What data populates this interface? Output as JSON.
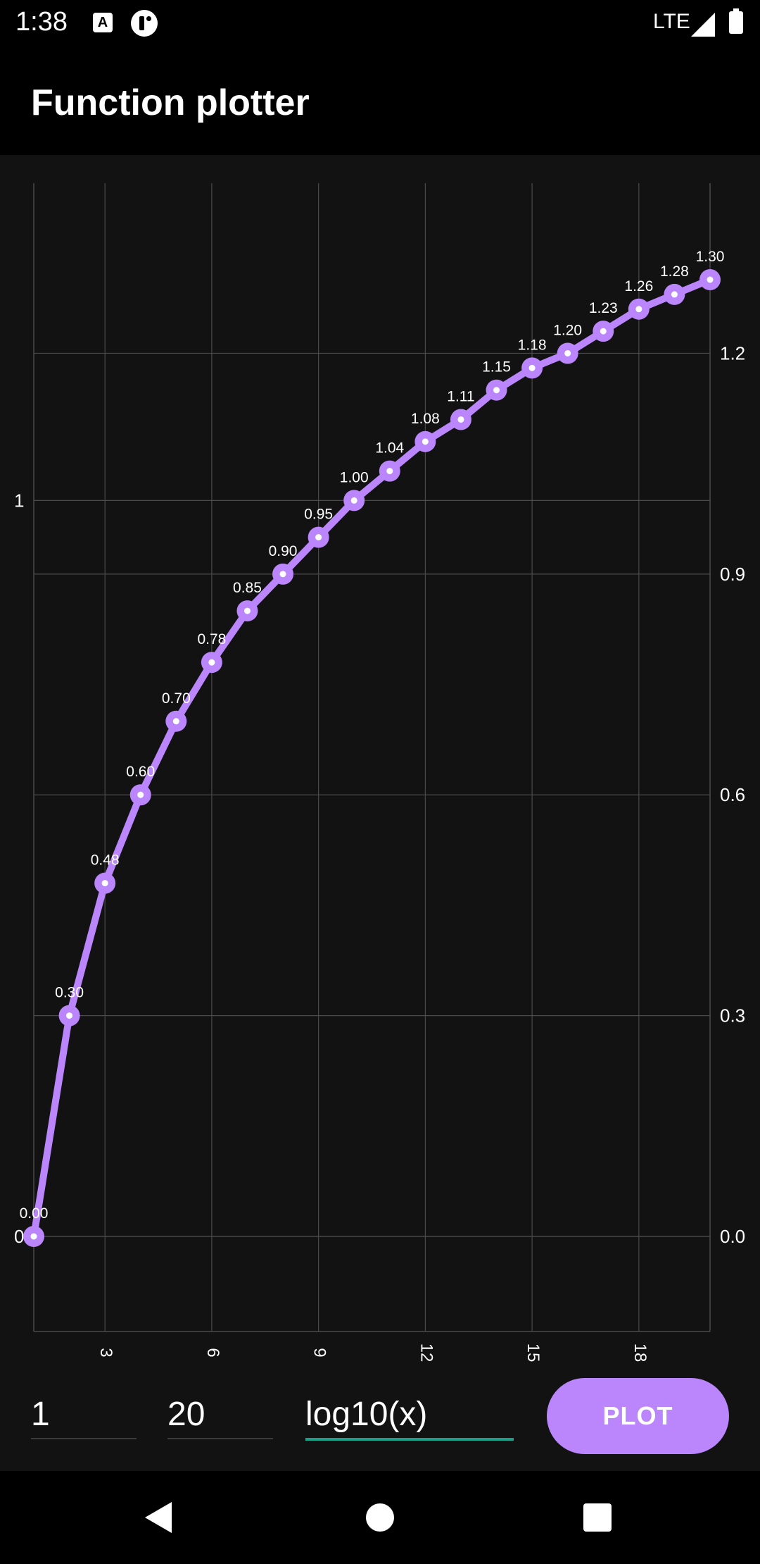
{
  "status_bar": {
    "time": "1:38",
    "network": "LTE",
    "icons": [
      "keyboard-a-icon",
      "app-notification-icon",
      "signal-icon",
      "battery-icon"
    ]
  },
  "app_bar": {
    "title": "Function plotter"
  },
  "inputs": {
    "from_value": "1",
    "to_value": "20",
    "function_value": "log10(x)"
  },
  "plot_button": {
    "label": "PLOT"
  },
  "colors": {
    "accent": "#bb86fc",
    "background": "#121212",
    "grid": "#4a4a4a",
    "input_underline_active": "#1f9e8a"
  },
  "chart_data": {
    "type": "line",
    "x": [
      1,
      2,
      3,
      4,
      5,
      6,
      7,
      8,
      9,
      10,
      11,
      12,
      13,
      14,
      15,
      16,
      17,
      18,
      19,
      20
    ],
    "series": [
      {
        "values": [
          0.0,
          0.3,
          0.48,
          0.6,
          0.7,
          0.78,
          0.85,
          0.9,
          0.95,
          1.0,
          1.04,
          1.08,
          1.11,
          1.15,
          1.18,
          1.2,
          1.23,
          1.26,
          1.28,
          1.3
        ],
        "labels": [
          "0.00",
          "0.30",
          "0.48",
          "0.60",
          "0.70",
          "0.78",
          "0.85",
          "0.90",
          "0.95",
          "1.00",
          "1.04",
          "1.08",
          "1.11",
          "1.15",
          "1.18",
          "1.20",
          "1.23",
          "1.26",
          "1.28",
          "1.30"
        ]
      }
    ],
    "x_ticks": [
      3,
      6,
      9,
      12,
      15,
      18
    ],
    "x_tick_labels": [
      "3",
      "6",
      "9",
      "12",
      "15",
      "18"
    ],
    "y_right_ticks": [
      0.0,
      0.3,
      0.6,
      0.9,
      1.2
    ],
    "y_right_tick_labels": [
      "0.0",
      "0.3",
      "0.6",
      "0.9",
      "1.2"
    ],
    "y_left_ticks": [
      0,
      1
    ],
    "y_left_tick_labels": [
      "0",
      "1"
    ],
    "xlim": [
      1,
      20
    ],
    "ylim": [
      -0.13,
      1.43
    ],
    "grid": true
  }
}
